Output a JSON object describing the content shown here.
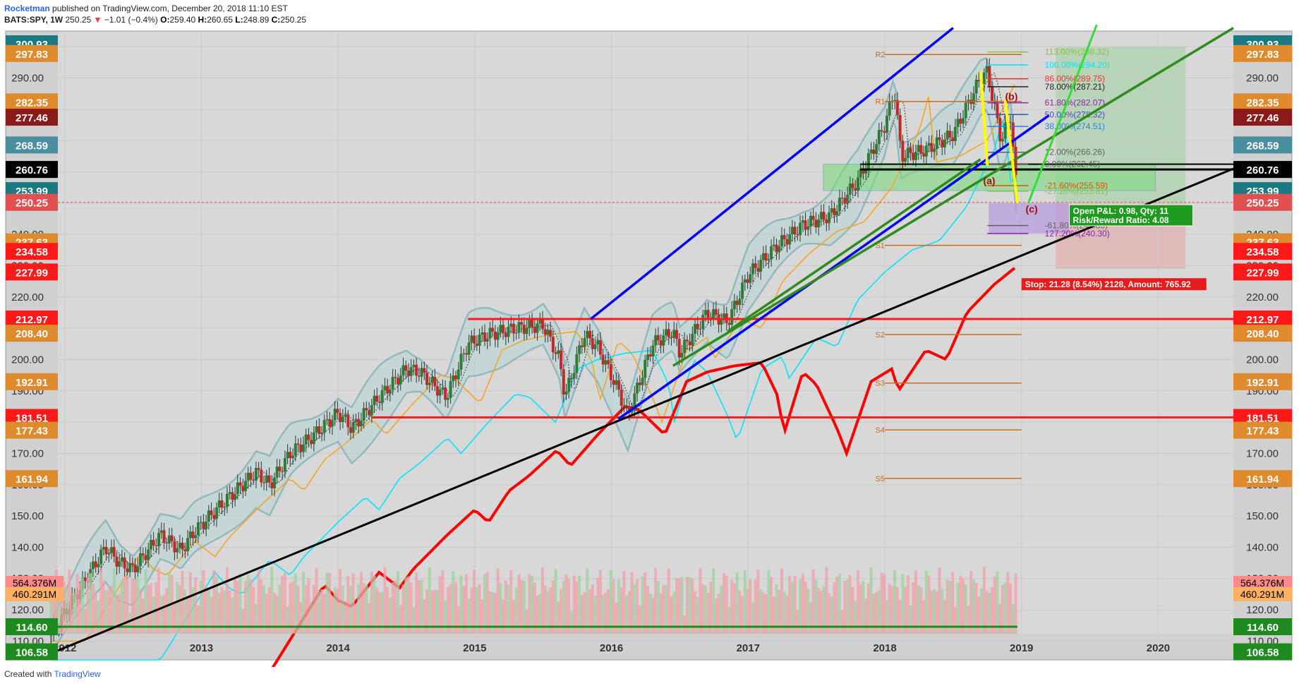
{
  "header": {
    "author": "Rocketman",
    "published": "published on TradingView.com, December 20, 2018 11:10 EST",
    "symbol": "BATS:SPY, 1W",
    "last": "250.25",
    "change_arrow": "▼",
    "change": "−1.01 (−0.4%)",
    "o_label": "O:",
    "o": "259.40",
    "h_label": "H:",
    "h": "260.65",
    "l_label": "L:",
    "l": "248.89",
    "c_label": "C:",
    "c": "250.25"
  },
  "footer": {
    "created": "Created with",
    "brand": "TradingView"
  },
  "chart_data": {
    "type": "line",
    "title": "",
    "xlabel": "",
    "ylabel": "",
    "ylim": [
      104,
      305
    ],
    "x_ticks": [
      "2012",
      "2013",
      "2014",
      "2015",
      "2016",
      "2017",
      "2018",
      "2019",
      "2020"
    ],
    "x_tick_years": [
      2012.0,
      2013.0,
      2014.0,
      2015.0,
      2016.0,
      2017.0,
      2018.0,
      2019.0,
      2020.0
    ],
    "y_ticks": [
      "110.00",
      "120.00",
      "130.00",
      "140.00",
      "150.00",
      "160.00",
      "170.00",
      "180.00",
      "190.00",
      "200.00",
      "210.00",
      "220.00",
      "230.00",
      "240.00",
      "250.00",
      "260.00",
      "270.00",
      "280.00",
      "290.00",
      "300.00"
    ],
    "price_series": {
      "name": "SPY",
      "x": [
        2011.9,
        2012.1,
        2012.3,
        2012.4,
        2012.5,
        2012.7,
        2012.85,
        2012.95,
        2013.2,
        2013.4,
        2013.5,
        2013.65,
        2013.8,
        2014.0,
        2014.1,
        2014.3,
        2014.5,
        2014.6,
        2014.79,
        2014.95,
        2015.1,
        2015.3,
        2015.5,
        2015.62,
        2015.66,
        2015.8,
        2015.9,
        2016.05,
        2016.12,
        2016.3,
        2016.45,
        2016.5,
        2016.7,
        2016.85,
        2017.0,
        2017.2,
        2017.4,
        2017.6,
        2017.8,
        2018.0,
        2018.07,
        2018.12,
        2018.3,
        2018.5,
        2018.7,
        2018.75,
        2018.85,
        2018.92,
        2018.97
      ],
      "y": [
        112,
        126,
        140,
        135,
        133,
        144,
        139,
        145,
        156,
        164,
        160,
        170,
        175,
        183,
        178,
        188,
        197,
        196,
        188,
        205,
        208,
        210,
        211,
        200,
        188,
        208,
        204,
        190,
        182,
        205,
        209,
        202,
        215,
        212,
        227,
        236,
        243,
        246,
        257,
        275,
        286,
        265,
        267,
        272,
        290,
        292,
        270,
        278,
        250
      ]
    },
    "levels": [
      {
        "label": "300.93",
        "value": 300.93,
        "color": "#1a7a82"
      },
      {
        "label": "297.83",
        "value": 297.83,
        "color": "#e08a2e"
      },
      {
        "label": "282.35",
        "value": 282.35,
        "color": "#e08a2e"
      },
      {
        "label": "277.46",
        "value": 277.46,
        "color": "#8b1a1a"
      },
      {
        "label": "268.59",
        "value": 268.59,
        "color": "#4a8fa0"
      },
      {
        "label": "260.76",
        "value": 260.76,
        "color": "#000000"
      },
      {
        "label": "253.99",
        "value": 253.99,
        "color": "#1a7a82"
      },
      {
        "label": "250.25",
        "value": 250.25,
        "color": "#e05050"
      },
      {
        "label": "237.63",
        "value": 237.63,
        "color": "#e08a2e"
      },
      {
        "label": "234.58",
        "value": 234.58,
        "color": "#ff1a1a"
      },
      {
        "label": "227.99",
        "value": 227.99,
        "color": "#ff1a1a"
      },
      {
        "label": "212.97",
        "value": 212.97,
        "color": "#ff1a1a"
      },
      {
        "label": "208.40",
        "value": 208.4,
        "color": "#e08a2e"
      },
      {
        "label": "192.91",
        "value": 192.91,
        "color": "#e08a2e"
      },
      {
        "label": "181.51",
        "value": 181.51,
        "color": "#ff1a1a"
      },
      {
        "label": "177.43",
        "value": 177.43,
        "color": "#e08a2e"
      },
      {
        "label": "161.94",
        "value": 161.94,
        "color": "#e08a2e"
      },
      {
        "label": "114.60",
        "value": 114.6,
        "color": "#1f8a1f"
      },
      {
        "label": "106.58",
        "value": 106.58,
        "color": "#1f8a1f"
      }
    ],
    "volume_labels": [
      {
        "label": "564.376M",
        "color": "#ff8a8a"
      },
      {
        "label": "460.291M",
        "color": "#ffb060"
      }
    ],
    "fib_levels": [
      {
        "label": "113.00%(298.32)",
        "value": 298.32,
        "color": "#8bc34a"
      },
      {
        "label": "100.00%(294.20)",
        "value": 294.2,
        "color": "#00e5ff"
      },
      {
        "label": "86.00%(289.75)",
        "value": 289.75,
        "color": "#e53935"
      },
      {
        "label": "78.00%(287.21)",
        "value": 287.21,
        "color": "#222222"
      },
      {
        "label": "61.80%(282.07)",
        "value": 282.07,
        "color": "#8e24aa"
      },
      {
        "label": "50.00%(278.32)",
        "value": 278.32,
        "color": "#3f51b5"
      },
      {
        "label": "38.00%(274.51)",
        "value": 274.51,
        "color": "#1e88e5"
      },
      {
        "label": "12.00%(266.26)",
        "value": 266.26,
        "color": "#616161"
      },
      {
        "label": "0.00%(262.45)",
        "value": 262.45,
        "color": "#616161"
      },
      {
        "label": "-21.60%(255.59)",
        "value": 255.59,
        "color": "#e65100"
      },
      {
        "label": "-27.20%(253.81)",
        "value": 253.81,
        "color": "#8bc34a"
      },
      {
        "label": "-61.80%(242.83)",
        "value": 242.83,
        "color": "#616161"
      },
      {
        "label": "127.20%(240.30)",
        "value": 240.3,
        "color": "#8e24aa"
      }
    ],
    "pivots": [
      {
        "label": "R2",
        "value": 297.5
      },
      {
        "label": "R1",
        "value": 282.5
      },
      {
        "label": "S1",
        "value": 236.5
      },
      {
        "label": "S2",
        "value": 208.0
      },
      {
        "label": "S3",
        "value": 192.5
      },
      {
        "label": "S4",
        "value": 177.5
      },
      {
        "label": "S5",
        "value": 162.0
      }
    ],
    "wave_labels": [
      "(a)",
      "(b)",
      "(c)"
    ],
    "position_box": {
      "line1": "Open P&L: 0.98, Qty: 11",
      "line2": "Risk/Reward Ratio: 4.08"
    },
    "stop_box": "Stop: 21.28 (8.54%) 2128, Amount: 765.92",
    "colors": {
      "background": "#d8d8d8",
      "bollinger": "#5aa0a8",
      "ma_fast": "#f5a623",
      "ma_mid": "#00e5ff",
      "ma_slow": "#ff0000",
      "channel_blue": "#0000ff",
      "channel_green": "#2e8b1e",
      "trend_black": "#000000",
      "projection_green": "#33dd33",
      "wave_yellow": "#ffff00"
    }
  }
}
